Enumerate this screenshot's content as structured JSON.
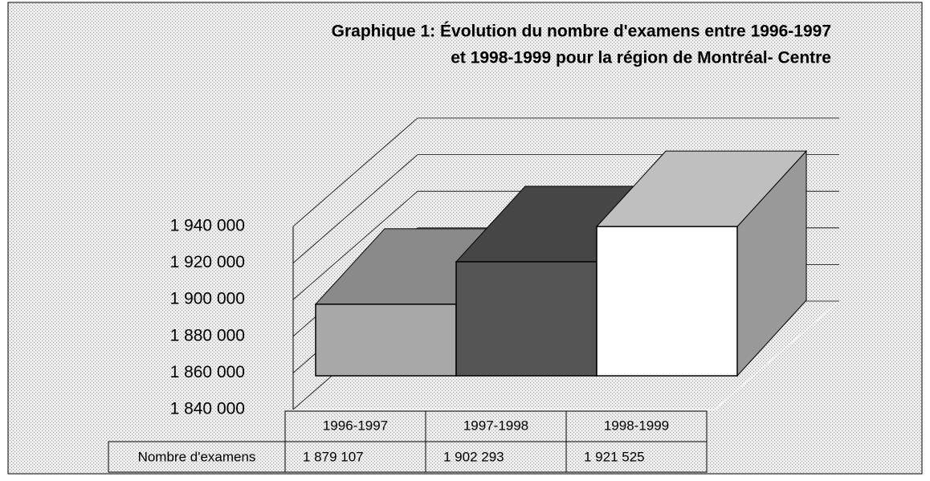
{
  "chart_data": {
    "type": "bar3d",
    "title": [
      "Graphique 1:  Évolution du nombre d'examens entre 1996-1997",
      "et 1998-1999 pour la région de Montréal- Centre"
    ],
    "categories": [
      "1996-1997",
      "1997-1998",
      "1998-1999"
    ],
    "series": [
      {
        "name": "Nombre d'examens",
        "values": [
          1879107,
          1902293,
          1921525
        ],
        "value_labels": [
          "1 879 107",
          "1 902 293",
          "1 921 525"
        ]
      }
    ],
    "colors": [
      "#a8a8a8",
      "#555555",
      "#ffffff"
    ],
    "ylim": [
      1840000,
      1940000
    ],
    "yticks": [
      {
        "value": 1840000,
        "label": "1 840 000"
      },
      {
        "value": 1860000,
        "label": "1 860 000"
      },
      {
        "value": 1880000,
        "label": "1 880 000"
      },
      {
        "value": 1900000,
        "label": "1 900 000"
      },
      {
        "value": 1920000,
        "label": "1 920 000"
      },
      {
        "value": 1940000,
        "label": "1 940 000"
      }
    ],
    "grid": true
  }
}
